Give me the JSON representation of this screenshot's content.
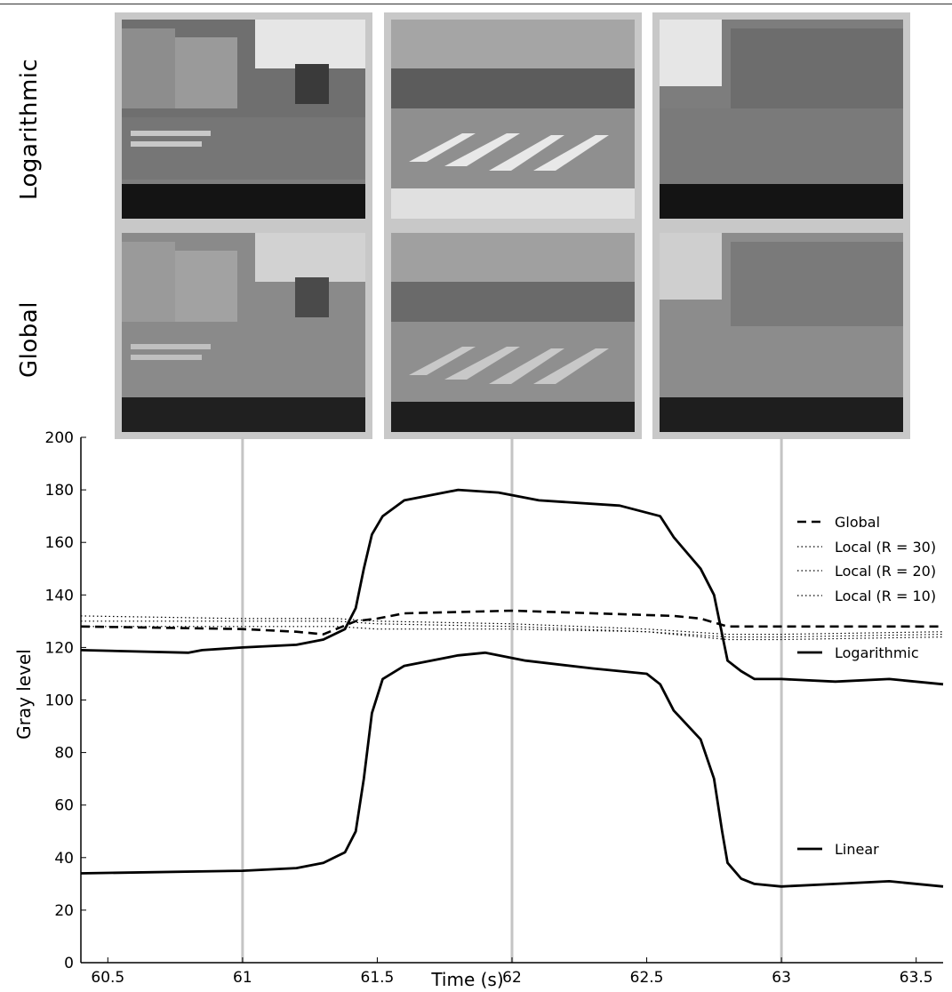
{
  "row_labels": {
    "top": "Logarithmic",
    "bottom": "Global"
  },
  "chart_data": {
    "type": "line",
    "title": "",
    "xlabel": "Time (s)",
    "ylabel": "Gray level",
    "xlim": [
      60.4,
      63.6
    ],
    "ylim": [
      0,
      200
    ],
    "xticks": [
      60.5,
      61,
      61.5,
      62,
      62.5,
      63,
      63.5
    ],
    "yticks": [
      0,
      20,
      40,
      60,
      80,
      100,
      120,
      140,
      160,
      180,
      200
    ],
    "grid": false,
    "marker_lines_x": [
      61,
      62,
      63
    ],
    "legend_position": "right",
    "series": [
      {
        "name": "Global",
        "style": "dashed",
        "x": [
          60.4,
          61.0,
          61.2,
          61.3,
          61.42,
          61.5,
          61.6,
          62.0,
          62.6,
          62.7,
          62.8,
          63.0,
          63.6
        ],
        "y": [
          128,
          127,
          126,
          125,
          130,
          131,
          133,
          134,
          132,
          131,
          128,
          128,
          128
        ]
      },
      {
        "name": "Local (R = 30)",
        "style": "dotted",
        "x": [
          60.4,
          61.0,
          61.35,
          61.5,
          62.0,
          62.5,
          62.8,
          63.0,
          63.6
        ],
        "y": [
          132,
          131,
          131,
          130,
          129,
          127,
          125,
          125,
          126
        ]
      },
      {
        "name": "Local (R = 20)",
        "style": "dotted",
        "x": [
          60.4,
          61.0,
          61.35,
          61.5,
          62.0,
          62.5,
          62.8,
          63.0,
          63.6
        ],
        "y": [
          130,
          130,
          130,
          129,
          128,
          126,
          124,
          124,
          125
        ]
      },
      {
        "name": "Local (R = 10)",
        "style": "dotted",
        "x": [
          60.4,
          61.0,
          61.35,
          61.5,
          62.0,
          62.5,
          62.8,
          63.0,
          63.6
        ],
        "y": [
          128,
          128,
          128,
          127,
          127,
          126,
          123,
          123,
          124
        ]
      },
      {
        "name": "Logarithmic",
        "style": "solid",
        "x": [
          60.4,
          60.8,
          60.85,
          61.0,
          61.2,
          61.3,
          61.38,
          61.42,
          61.45,
          61.48,
          61.52,
          61.6,
          61.8,
          61.95,
          62.1,
          62.4,
          62.55,
          62.6,
          62.7,
          62.75,
          62.78,
          62.8,
          62.85,
          62.9,
          63.0,
          63.2,
          63.4,
          63.6
        ],
        "y": [
          119,
          118,
          119,
          120,
          121,
          123,
          127,
          135,
          150,
          163,
          170,
          176,
          180,
          179,
          176,
          174,
          170,
          162,
          150,
          140,
          125,
          115,
          111,
          108,
          108,
          107,
          108,
          106
        ]
      },
      {
        "name": "Linear",
        "style": "solid",
        "x": [
          60.4,
          61.0,
          61.2,
          61.3,
          61.38,
          61.42,
          61.45,
          61.48,
          61.52,
          61.6,
          61.8,
          61.9,
          62.05,
          62.3,
          62.5,
          62.55,
          62.6,
          62.7,
          62.75,
          62.78,
          62.8,
          62.85,
          62.9,
          63.0,
          63.2,
          63.4,
          63.6
        ],
        "y": [
          34,
          35,
          36,
          38,
          42,
          50,
          70,
          95,
          108,
          113,
          117,
          118,
          115,
          112,
          110,
          106,
          96,
          85,
          70,
          50,
          38,
          32,
          30,
          29,
          30,
          31,
          29
        ]
      }
    ]
  }
}
